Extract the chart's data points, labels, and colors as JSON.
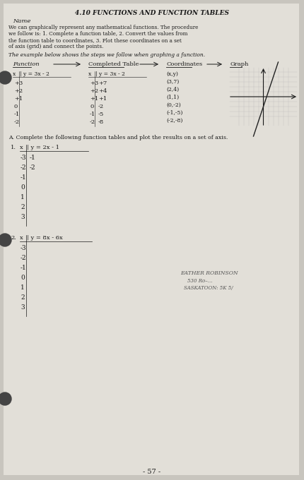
{
  "title": "4.10 FUNCTIONS AND FUNCTION TABLES",
  "page_label": "Name",
  "page_number": "- 57 -",
  "bg_color": "#c8c5be",
  "paper_color": "#e2dfd8",
  "intro_text": "We can graphically represent any mathematical functions. The procedure we follow is: 1. Complete a function table, 2. Convert the values from the function table to coordinates, 3. Plot these coordinates on a set of axis (grid) and connect the points.",
  "example_intro": "The example below shows the steps we follow when graphing a function.",
  "col_headers": [
    "Function",
    "Completed Table",
    "Coordinates",
    "Graph"
  ],
  "function_x_vals": [
    "+3",
    "+2",
    "+1",
    "0",
    "-1",
    "-2"
  ],
  "completed_table_x": [
    "+3",
    "+2",
    "+1",
    "0",
    "-1",
    "-2"
  ],
  "completed_table_y": [
    "+7",
    "+4",
    "+1",
    "-2",
    "-5",
    "-8"
  ],
  "coordinates": [
    "(x,y)",
    "(3,7)",
    "(2,4)",
    "(1,1)",
    "(0,-2)",
    "(-1,-5)",
    "(-2,-8)"
  ],
  "section_A": "A. Complete the following function tables and plot the results on a set of axis.",
  "table1_x": [
    "-3",
    "-2",
    "-1",
    "0",
    "1",
    "2",
    "3"
  ],
  "table1_y_filled": [
    "-1",
    "-2",
    "",
    "",
    "",
    "",
    ""
  ],
  "table2_x": [
    "-3",
    "-2",
    "-1",
    "0",
    "1",
    "2",
    "3"
  ],
  "text_color": "#1a1a1a",
  "stamp_color": "#555555"
}
